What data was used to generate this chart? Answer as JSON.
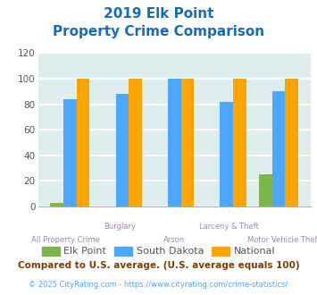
{
  "title_line1": "2019 Elk Point",
  "title_line2": "Property Crime Comparison",
  "categories": [
    "All Property Crime",
    "Burglary",
    "Arson",
    "Larceny & Theft",
    "Motor Vehicle Theft"
  ],
  "elk_point": [
    3,
    0,
    0,
    0,
    25
  ],
  "south_dakota": [
    84,
    88,
    100,
    82,
    90
  ],
  "national": [
    100,
    100,
    100,
    100,
    100
  ],
  "elk_point_color": "#7ab648",
  "south_dakota_color": "#4da6ff",
  "national_color": "#ffa500",
  "ylim": [
    0,
    120
  ],
  "yticks": [
    0,
    20,
    40,
    60,
    80,
    100,
    120
  ],
  "bar_width": 0.25,
  "background_color": "#deeeed",
  "grid_color": "#ffffff",
  "title_color": "#1a6ab5",
  "xlabel_color": "#9b8ea0",
  "legend_label_color": "#555555",
  "legend_labels": [
    "Elk Point",
    "South Dakota",
    "National"
  ],
  "footnote1": "Compared to U.S. average. (U.S. average equals 100)",
  "footnote2": "© 2025 CityRating.com - https://www.cityrating.com/crime-statistics/",
  "footnote1_color": "#7b3f00",
  "footnote2_color": "#4da6ff"
}
